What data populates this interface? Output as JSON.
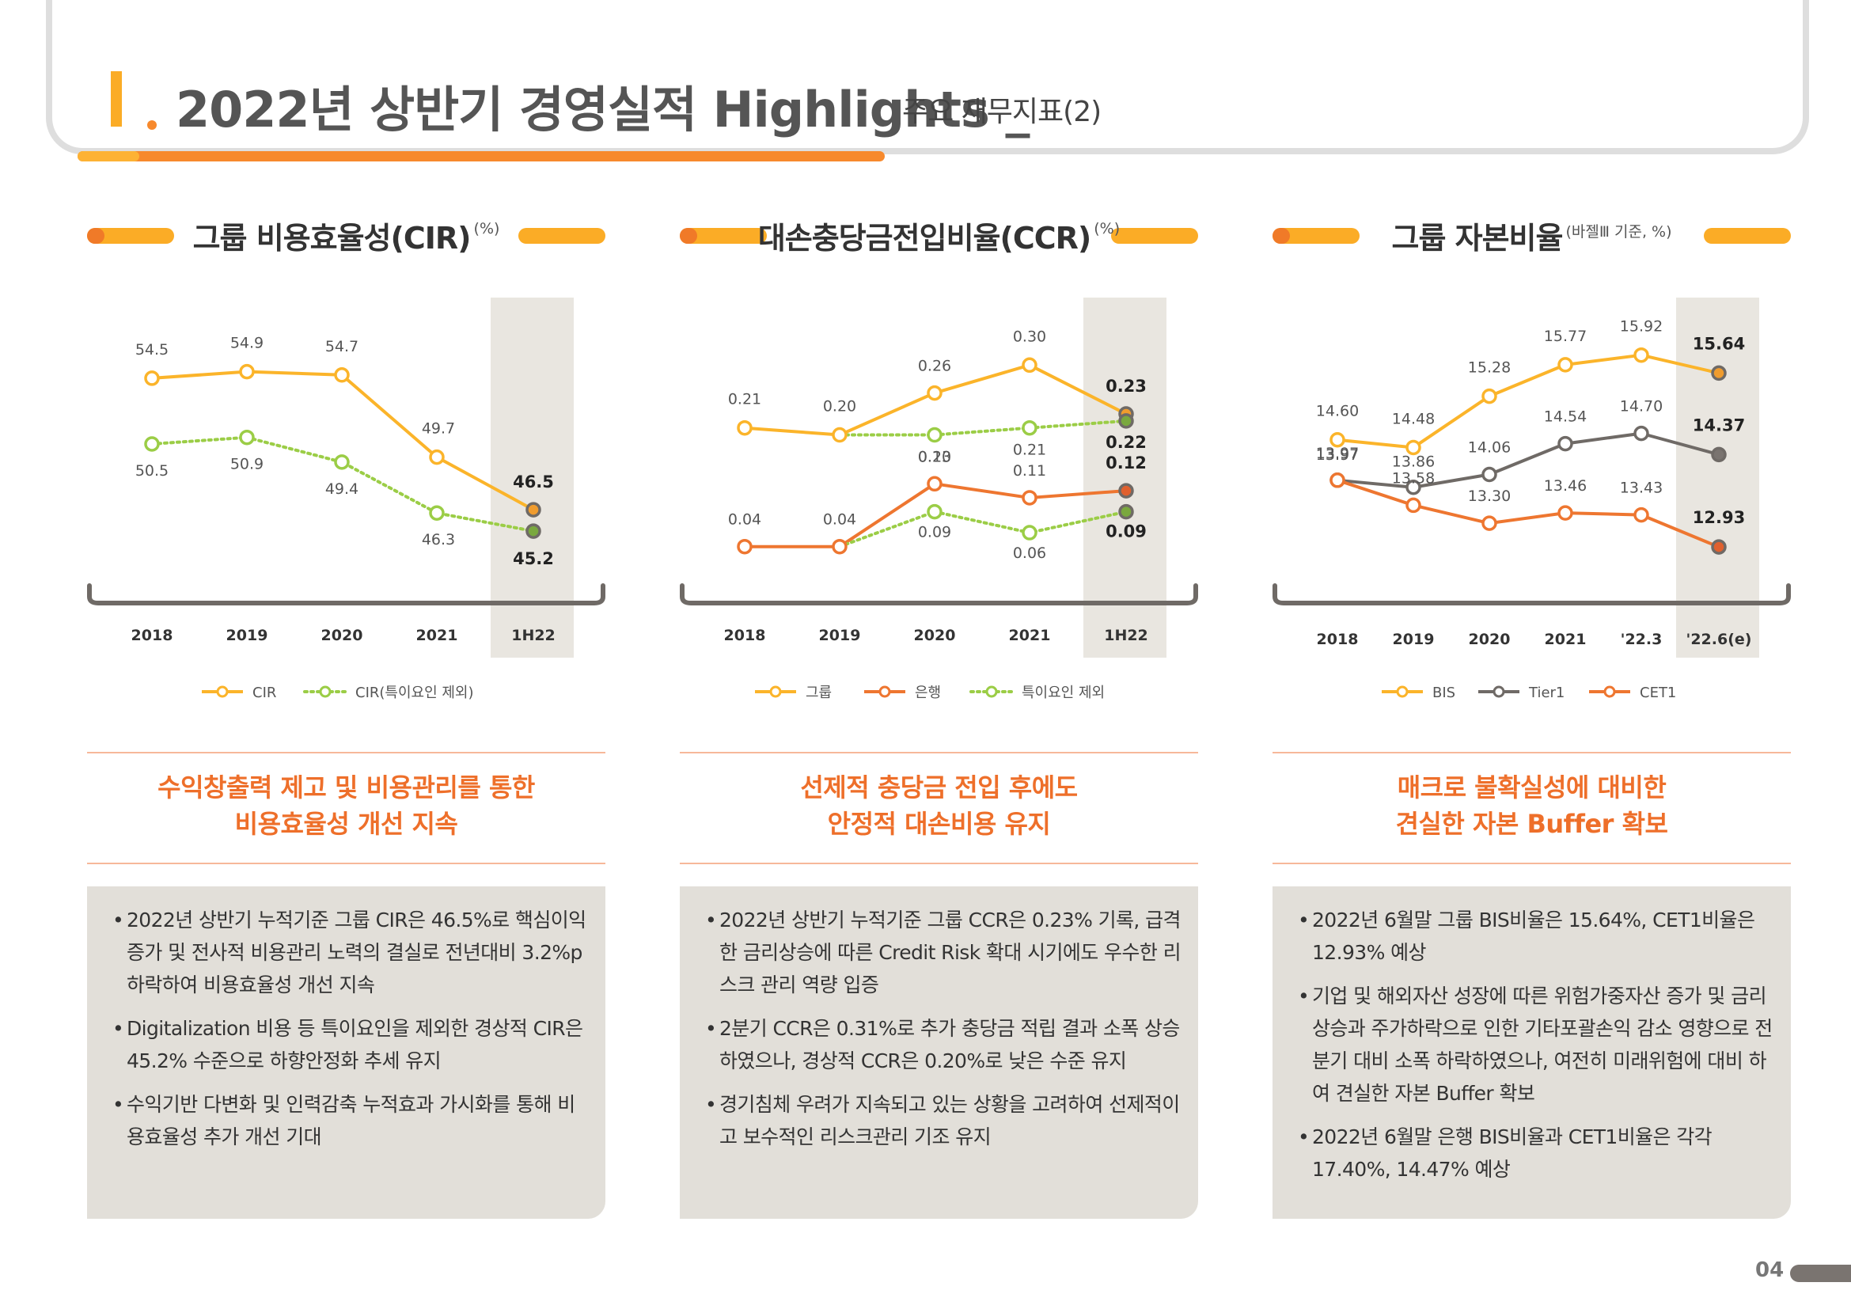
{
  "header": {
    "title": "2022년 상반기 경영실적 Highlights _",
    "subtitle": "주요 재무지표(2)"
  },
  "sections": [
    {
      "title": "그룹 비용효율성(CIR)",
      "unit": "(%)",
      "headline": [
        "수익창출력 제고 및 비용관리를 통한",
        "비용효율성 개선 지속"
      ],
      "bullets": [
        "2022년 상반기 누적기준 그룹 CIR은 46.5%로 핵심이익 증가 및 전사적 비용관리 노력의 결실로 전년대비 3.2%p 하락하여 비용효율성 개선 지속",
        "Digitalization 비용 등 특이요인을 제외한 경상적 CIR은 45.2% 수준으로 하향안정화 추세 유지",
        "수익기반 다변화 및 인력감축 누적효과 가시화를 통해 비용효율성 추가 개선 기대"
      ]
    },
    {
      "title": "대손충당금전입비율(CCR)",
      "unit": "(%)",
      "headline": [
        "선제적 충당금 전입 후에도",
        "안정적 대손비용 유지"
      ],
      "bullets": [
        "2022년 상반기 누적기준 그룹 CCR은 0.23% 기록, 급격한 금리상승에 따른 Credit Risk 확대 시기에도 우수한 리스크 관리 역량 입증",
        "2분기 CCR은 0.31%로 추가 충당금 적립 결과 소폭 상승하였으나, 경상적 CCR은 0.20%로 낮은 수준 유지",
        "경기침체 우려가 지속되고 있는 상황을 고려하여 선제적이고 보수적인 리스크관리 기조 유지"
      ]
    },
    {
      "title": "그룹 자본비율",
      "unit": "(바젤Ⅲ 기준, %)",
      "headline": [
        "매크로 불확실성에 대비한",
        "견실한 자본 Buffer 확보"
      ],
      "bullets": [
        "2022년 6월말 그룹 BIS비율은 15.64%, CET1비율은 12.93% 예상",
        "기업 및 해외자산 성장에 따른 위험가중자산 증가 및 금리 상승과 주가하락으로 인한 기타포괄손익 감소 영향으로 전분기 대비 소폭 하락하였으나, 여전히 미래위험에 대비 하여 견실한 자본 Buffer 확보",
        "2022년 6월말 은행 BIS비율과 CET1비율은 각각 17.40%, 14.47% 예상"
      ]
    }
  ],
  "chart_data": [
    {
      "type": "line",
      "title": "그룹 비용효율성(CIR)",
      "unit": "(%)",
      "x": [
        "2018",
        "2019",
        "2020",
        "2021",
        "1H22"
      ],
      "highlight_category": "1H22",
      "legend_position": "bottom",
      "series": [
        {
          "name": "CIR",
          "values": [
            54.5,
            54.9,
            54.7,
            49.7,
            46.5
          ],
          "labels": [
            "54.5",
            "54.9",
            "54.7",
            "49.7",
            "46.5"
          ],
          "color": "#fbb42a",
          "dashed": false,
          "fill_last": "#f09c2e"
        },
        {
          "name": "CIR(특이요인 제외)",
          "values": [
            50.5,
            50.9,
            49.4,
            46.3,
            45.2
          ],
          "labels": [
            "50.5",
            "50.9",
            "49.4",
            "46.3",
            "45.2"
          ],
          "color": "#9bcd46",
          "dashed": true,
          "fill_last": "#7aa83e"
        }
      ]
    },
    {
      "type": "line",
      "title": "대손충당금전입비율(CCR)",
      "unit": "(%)",
      "x": [
        "2018",
        "2019",
        "2020",
        "2021",
        "1H22"
      ],
      "highlight_category": "1H22",
      "legend_position": "bottom",
      "series": [
        {
          "name": "그룹",
          "values": [
            0.21,
            0.2,
            0.26,
            0.3,
            0.23
          ],
          "labels": [
            "0.21",
            "0.20",
            "0.26",
            "0.30",
            "0.23"
          ],
          "color": "#fbb42a",
          "dashed": false,
          "fill_last": "#f09c2e"
        },
        {
          "name": "은행",
          "values": [
            0.04,
            0.04,
            0.13,
            0.11,
            0.12
          ],
          "labels": [
            "0.04",
            "0.04",
            "0.13",
            "0.11",
            "0.12"
          ],
          "color": "#ee7630",
          "dashed": false,
          "fill_last": "#e0602e"
        },
        {
          "name": "특이요인 제외",
          "values": [
            null,
            0.2,
            0.2,
            0.21,
            0.22
          ],
          "labels": [
            "",
            "",
            "0.20",
            "0.21",
            "0.22"
          ],
          "color": "#9bcd46",
          "dashed": true,
          "fill_last": "#7aa83e"
        },
        {
          "name": "특이요인 제외 (은행)",
          "values": [
            null,
            0.04,
            0.09,
            0.06,
            0.09
          ],
          "labels": [
            "",
            "",
            "0.09",
            "0.06",
            "0.09"
          ],
          "color": "#9bcd46",
          "dashed": true,
          "fill_last": "#7aa83e",
          "hide_in_legend": true
        }
      ]
    },
    {
      "type": "line",
      "title": "그룹 자본비율",
      "unit": "(바젤Ⅲ 기준, %)",
      "x": [
        "2018",
        "2019",
        "2020",
        "2021",
        "'22.3",
        "'22.6(e)"
      ],
      "highlight_category": "'22.6(e)",
      "legend_position": "bottom",
      "series": [
        {
          "name": "BIS",
          "values": [
            14.6,
            14.48,
            15.28,
            15.77,
            15.92,
            15.64
          ],
          "labels": [
            "14.60",
            "14.48",
            "15.28",
            "15.77",
            "15.92",
            "15.64"
          ],
          "color": "#fbb42a",
          "dashed": false,
          "fill_last": "#f09c2e"
        },
        {
          "name": "Tier1",
          "values": [
            13.97,
            13.86,
            14.06,
            14.54,
            14.7,
            14.37
          ],
          "labels": [
            "13.97",
            "13.86",
            "14.06",
            "14.54",
            "14.70",
            "14.37"
          ],
          "color": "#6f6a66",
          "dashed": false,
          "fill_last": "#7a7470"
        },
        {
          "name": "CET1",
          "values": [
            13.97,
            13.58,
            13.3,
            13.46,
            13.43,
            12.93
          ],
          "labels": [
            "13.97",
            "13.58",
            "13.30",
            "13.46",
            "13.43",
            "12.93"
          ],
          "color": "#ee7630",
          "dashed": false,
          "fill_last": "#e0602e"
        }
      ]
    }
  ],
  "page_number": "04"
}
